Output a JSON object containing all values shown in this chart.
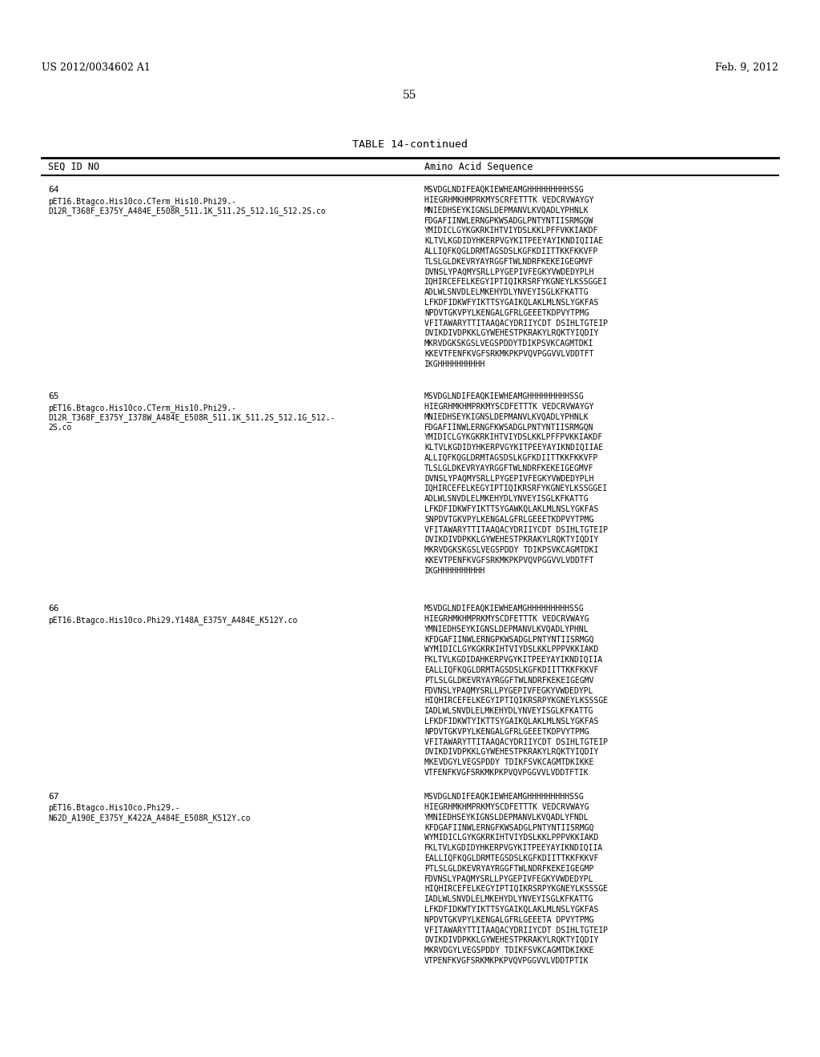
{
  "bg_color": "#ffffff",
  "header_left": "US 2012/0034602 A1",
  "header_right": "Feb. 9, 2012",
  "page_number": "55",
  "table_title": "TABLE 14-continued",
  "col1_header": "SEQ ID NO",
  "col2_header": "Amino Acid Sequence",
  "entries": [
    {
      "seq_id": "64",
      "label_lines": [
        "pET16.Btagco.His10co.CTerm_His10.Phi29.-",
        "D12R_T368F_E375Y_A484E_E508R_511.1K_511.2S_512.1G_512.2S.co"
      ],
      "sequence_lines": [
        "MSVDGLNDIFEAQKIEWHEAMGHHHHHHHHHSSG",
        "HIEGRHMKHMPRKMYSCRFETTTK VEDCRVWAYGY",
        "MNIEDHSEYKIGNSLDEPMANVLKVQADLYPHNLK",
        "FDGAFIINWLERNGPKWSADGLPNTYNTIISRMGQW",
        "YMIDICLGYKGKRKIHTVIYDSLKKLPFFVKKIAKDF",
        "KLTVLKGDIDYHKERPVGYKITPEEYAYIKNDIQIIAE",
        "ALLIQFKQGLDRMTAGSDSLKGFKDIITTKKFKKVFP",
        "TLSLGLDKEVRYAYRGGFTWLNDRFKEKEIGEGMVF",
        "DVNSLYPAQMYSRLLPYGEPIVFEGKYVWDEDYPLH",
        "IQHIRCEFELKEGYIPTIQIKRSRFYKGNEYLKSSGGEI",
        "ADLWLSNVDLELMKEHYDLYNVEYISGLKFKATTG",
        "LFKDFIDKWFYIKTTSYGAIKQLAKLMLNSLYGKFAS",
        "NPDVTGKVPYLKENGALGFRLGEEETKDPVYTPMG",
        "VFITAWARYTTITAAQACYDRIIYCDT DSIHLTGTEIP",
        "DVIKDIVDPKKLGYWEHESTPKRAKYLRQKTYIQDIY",
        "MKRVDGKSKGSLVEGSPDDYTDIKPSVKCAGMTDKI",
        "KKEVTFENFKVGFSRKMKPKPVQVPGGVVLVDDTFT",
        "IKGHHHHHHHHHH"
      ]
    },
    {
      "seq_id": "65",
      "label_lines": [
        "pET16.Btagco.His10co.CTerm_His10.Phi29.-",
        "D12R_T368F_E375Y_I378W_A484E_E508R_511.1K_511.2S_512.1G_512.-",
        "2S.co"
      ],
      "sequence_lines": [
        "MSVDGLNDIFEAQKIEWHEAMGHHHHHHHHHSSG",
        "HIEGRHMKHMPRKMYSCDFETTTK VEDCRVWAYGY",
        "MNIEDHSEYKIGNSLDEPMANVLKVQADLYPHNLK",
        "FDGAFIINWLERNGFKWSADGLPNTYNTIISRMGQN",
        "YMIDICLGYKGKRKIHTVIYDSLKKLPFFPVKKIAKDF",
        "KLTVLKGDIDYHKERPVGYKITPEEYAYIKNDIQIIAE",
        "ALLIQFKQGLDRMTAGSDSLKGFKDIITTKKFKKVFP",
        "TLSLGLDKEVRYAYRGGFTWLNDRFKEKEIGEGMVF",
        "DVNSLYPAQMYSRLLPYGEPIVFEGKYVWDEDYPLH",
        "IQHIRCEFELKEGYIPTIQIKRSRFYKGNEYLKSSGGEI",
        "ADLWLSNVDLELMKEHYDLYNVEYISGLKFKATTG",
        "LFKDFIDKWFYIKTTSYGAWKQLAKLMLNSLYGKFAS",
        "SNPDVTGKVPYLKENGALGFRLGEEETKDPVYTPMG",
        "VFITAWARYTTITAAQACYDRIIYCDT DSIHLTGTEIP",
        "DVIKDIVDPKKLGYWEHESTPKRAKYLRQKTYIQDIY",
        "MKRVDGKSKGSLVEGSPDDY TDIKPSVKCAGMTDKI",
        "KKEVTPENFKVGFSRKMKPKPVQVPGGVVLVDDTFT",
        "IKGHHHHHHHHHH"
      ]
    },
    {
      "seq_id": "66",
      "label_lines": [
        "pET16.Btagco.His10co.Phi29.Y148A_E375Y_A484E_K512Y.co"
      ],
      "sequence_lines": [
        "MSVDGLNDIFEAQKIEWHEAMGHHHHHHHHHSSG",
        "HIEGRHMKHMPRKMYSCDFETTTK VEDCRVWAYG",
        "YMNIEDHSEYKIGNSLDEPMANVLKVQADLYPHNL",
        "KFDGAFIINWLERNGPKWSADGLPNTYNTIISRMGQ",
        "WYMIDICLGYKGKRKIHTVIYDSLKKLPPPVKKIAKD",
        "FKLTVLKGDIDAHKERPVGYKITPEEYAYIKNDIQIIA",
        "EALLIQFKQGLDRMTAGSDSLKGFKDIITTKKFKKVF",
        "PTLSLGLDKEVRYAYRGGFTWLNDRFKEKEIGEGMV",
        "FDVNSLYPAQMYSRLLPYGEPIVFEGKYVWDEDYPL",
        "HIQHIRCEFELKEGYIPTIQIKRSRPYKGNEYLKSSSGE",
        "IADLWLSNVDLELMKEHYDLYNVEYISGLKFKATTG",
        "LFKDFIDKWTYIKTTSYGAIKQLAKLMLNSLYGKFAS",
        "NPDVTGKVPYLKENGALGFRLGEEETKDPVYTPMG",
        "VFITAWARYTTITAAQACYDRIIYCDT DSIHLTGTEIP",
        "DVIKDIVDPKKLGYWEHESTPKRAKYLRQKTYIQDIY",
        "MKEVDGYLVEGSPDDY TDIKFSVKCAGMTDKIKKE",
        "VTFENFKVGFSRKMKPKPVQVPGGVVLVDDTFTIK"
      ]
    },
    {
      "seq_id": "67",
      "label_lines": [
        "pET16.Btagco.His10co.Phi29.-",
        "N62D_A190E_E375Y_K422A_A484E_E508R_K512Y.co"
      ],
      "sequence_lines": [
        "MSVDGLNDIFEAQKIEWHEAMGHHHHHHHHHSSG",
        "HIEGRHMKHMPRKMYSCDFETTTK VEDCRVWAYG",
        "YMNIEDHSEYKIGNSLDEPMANVLKVQADLYFNDL",
        "KFDGAFIINWLERNGFKWSADGLPNTYNTIISRMGQ",
        "WYMIDICLGYKGKRKIHTVIYDSLKKLPPPVKKIAKD",
        "FKLTVLKGDIDYHKERPVGYKITPEEYAYIKNDIQIIA",
        "EALLIQFKQGLDRMTEGSDSLKGFKDIITTKKFKKVF",
        "PTLSLGLDKEVRYAYRGGFTWLNDRFKEKEIGEGMP",
        "FDVNSLYPAQMYSRLLPYGEPIVFEGKYVWDEDYPL",
        "HIQHIRCEFELKEGYIPTIQIKRSRPYKGNEYLKSSSGE",
        "IADLWLSNVDLELMKEHYDLYNVEYISGLKFKATTG",
        "LFKDFIDKWTYIKTTSYGAIKQLAKLMLNSLYGKFAS",
        "NPDVTGKVPYLKENGALGFRLGEEETA DPVYTPMG",
        "VFITAWARYTTITAAQACYDRIIYCDT DSIHLTGTEIP",
        "DVIKDIVDPKKLGYWEHESTPKRAKYLRQKTYIQDIY",
        "MKRVDGYLVEGSPDDY TDIKFSVKCAGMTDKIKKE",
        "VTPENFKVGFSRKMKPKPVQVPGGVVLVDDTPTIK"
      ]
    }
  ]
}
